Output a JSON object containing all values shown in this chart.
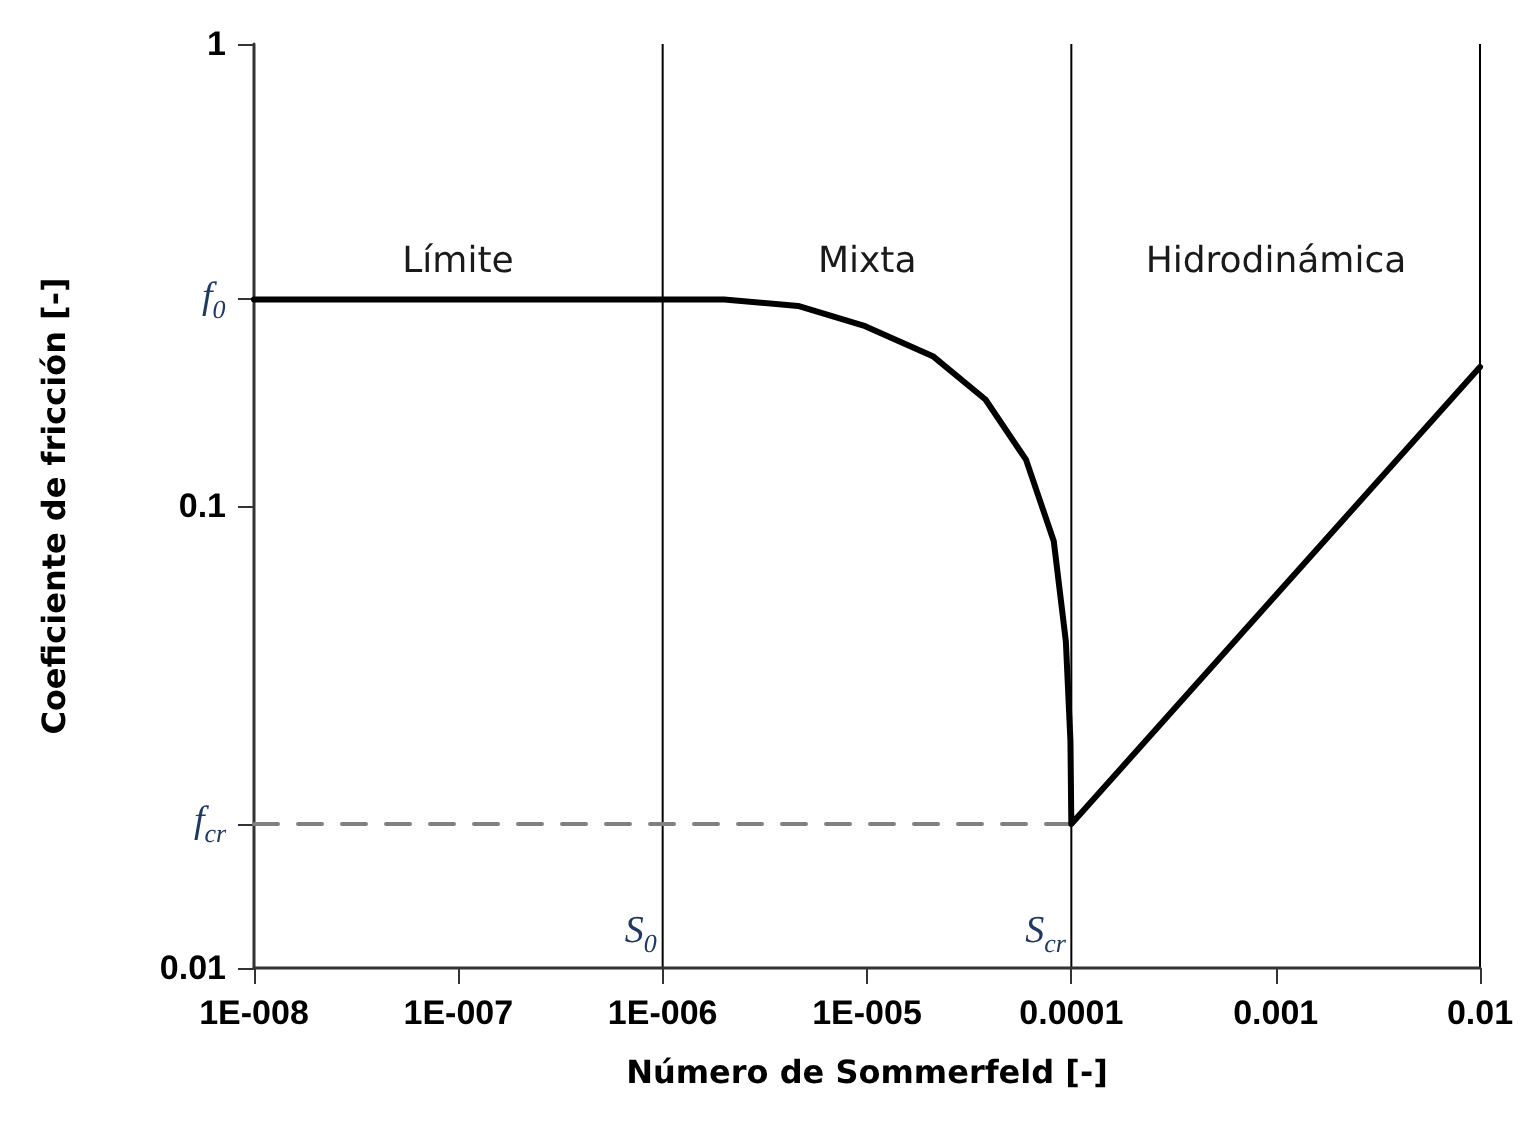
{
  "chart_data": {
    "type": "line",
    "xlabel": "Número de Sommerfeld [-]",
    "ylabel": "Coeficiente de fricción [-]",
    "log": "xy",
    "xlim": [
      1e-08,
      0.01
    ],
    "xticks": [
      {
        "value": 1e-08,
        "label": "1E-008"
      },
      {
        "value": 1e-07,
        "label": "1E-007"
      },
      {
        "value": 1e-06,
        "label": "1E-006"
      },
      {
        "value": 1e-05,
        "label": "1E-005"
      },
      {
        "value": 0.0001,
        "label": "0.0001"
      },
      {
        "value": 0.001,
        "label": "0.001"
      },
      {
        "value": 0.01,
        "label": "0.01"
      }
    ],
    "ylim": [
      0.01,
      1
    ],
    "yticks": [
      0.01,
      {
        "value": 0.0205,
        "label": "f$_{cr}$"
      },
      0.1,
      {
        "value": 0.28,
        "label": "f$_{0}$"
      },
      1
    ],
    "grid": false,
    "marker": "none",
    "series": [
      {
        "color": "#000000",
        "line_style": "solid",
        "x": [
          1e-08,
          2e-06,
          4.6e-06,
          9.8e-06,
          2.1e-05,
          3.8e-05,
          6e-05,
          8.2e-05,
          9.4e-05,
          9.9e-05,
          0.0001,
          0.01
        ],
        "values": [
          0.28,
          0.28,
          0.271,
          0.245,
          0.211,
          0.17,
          0.126,
          0.084,
          0.051,
          0.031,
          0.0205,
          0.2
        ]
      },
      {
        "color": "#808080",
        "line_style": "dashed",
        "x": [
          1e-08,
          0.0001
        ],
        "values": [
          0.0205,
          0.0205
        ]
      }
    ],
    "ref_lines": [
      {
        "axis": "x",
        "value": 1e-06,
        "label": "S$_{0}$"
      },
      {
        "axis": "x",
        "value": 0.0001,
        "label": "S$_{cr}$"
      },
      {
        "axis": "x",
        "value": 0.01,
        "label": null
      }
    ],
    "annotations": [
      "Límite",
      "Mixta",
      "Hidrodinámica"
    ]
  }
}
